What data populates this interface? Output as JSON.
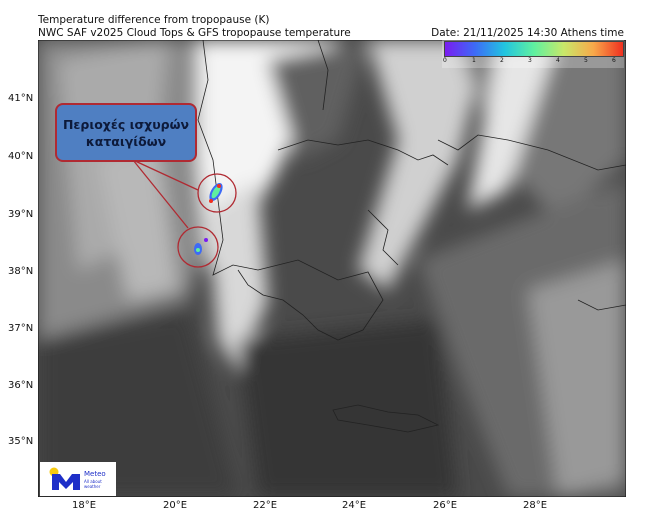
{
  "header": {
    "title": "Temperature difference from tropopause (K)",
    "subtitle": "NWC SAF v2025 Cloud Tops & GFS tropopause temperature",
    "date": "Date: 21/11/2025 14:30 Athens time"
  },
  "colorbar": {
    "ticks": [
      "0",
      "1",
      "2",
      "3",
      "4",
      "5",
      "6"
    ],
    "colors": [
      "#7a1cf0",
      "#3d6af6",
      "#22c4e0",
      "#5ff0a0",
      "#c8e86a",
      "#f8a94a",
      "#f03020"
    ]
  },
  "axes": {
    "lat_labels": [
      "41°N",
      "40°N",
      "39°N",
      "38°N",
      "37°N",
      "36°N",
      "35°N"
    ],
    "lon_labels": [
      "18°E",
      "20°E",
      "22°E",
      "24°E",
      "26°E",
      "28°E"
    ]
  },
  "annotation": {
    "line1": "Περιοχές ισχυρών",
    "line2": "καταιγίδων",
    "border_color": "#b02a32",
    "fill_color": "#4f7fc2"
  },
  "logo": {
    "name": "Meteo",
    "tagline": "All about weather"
  }
}
